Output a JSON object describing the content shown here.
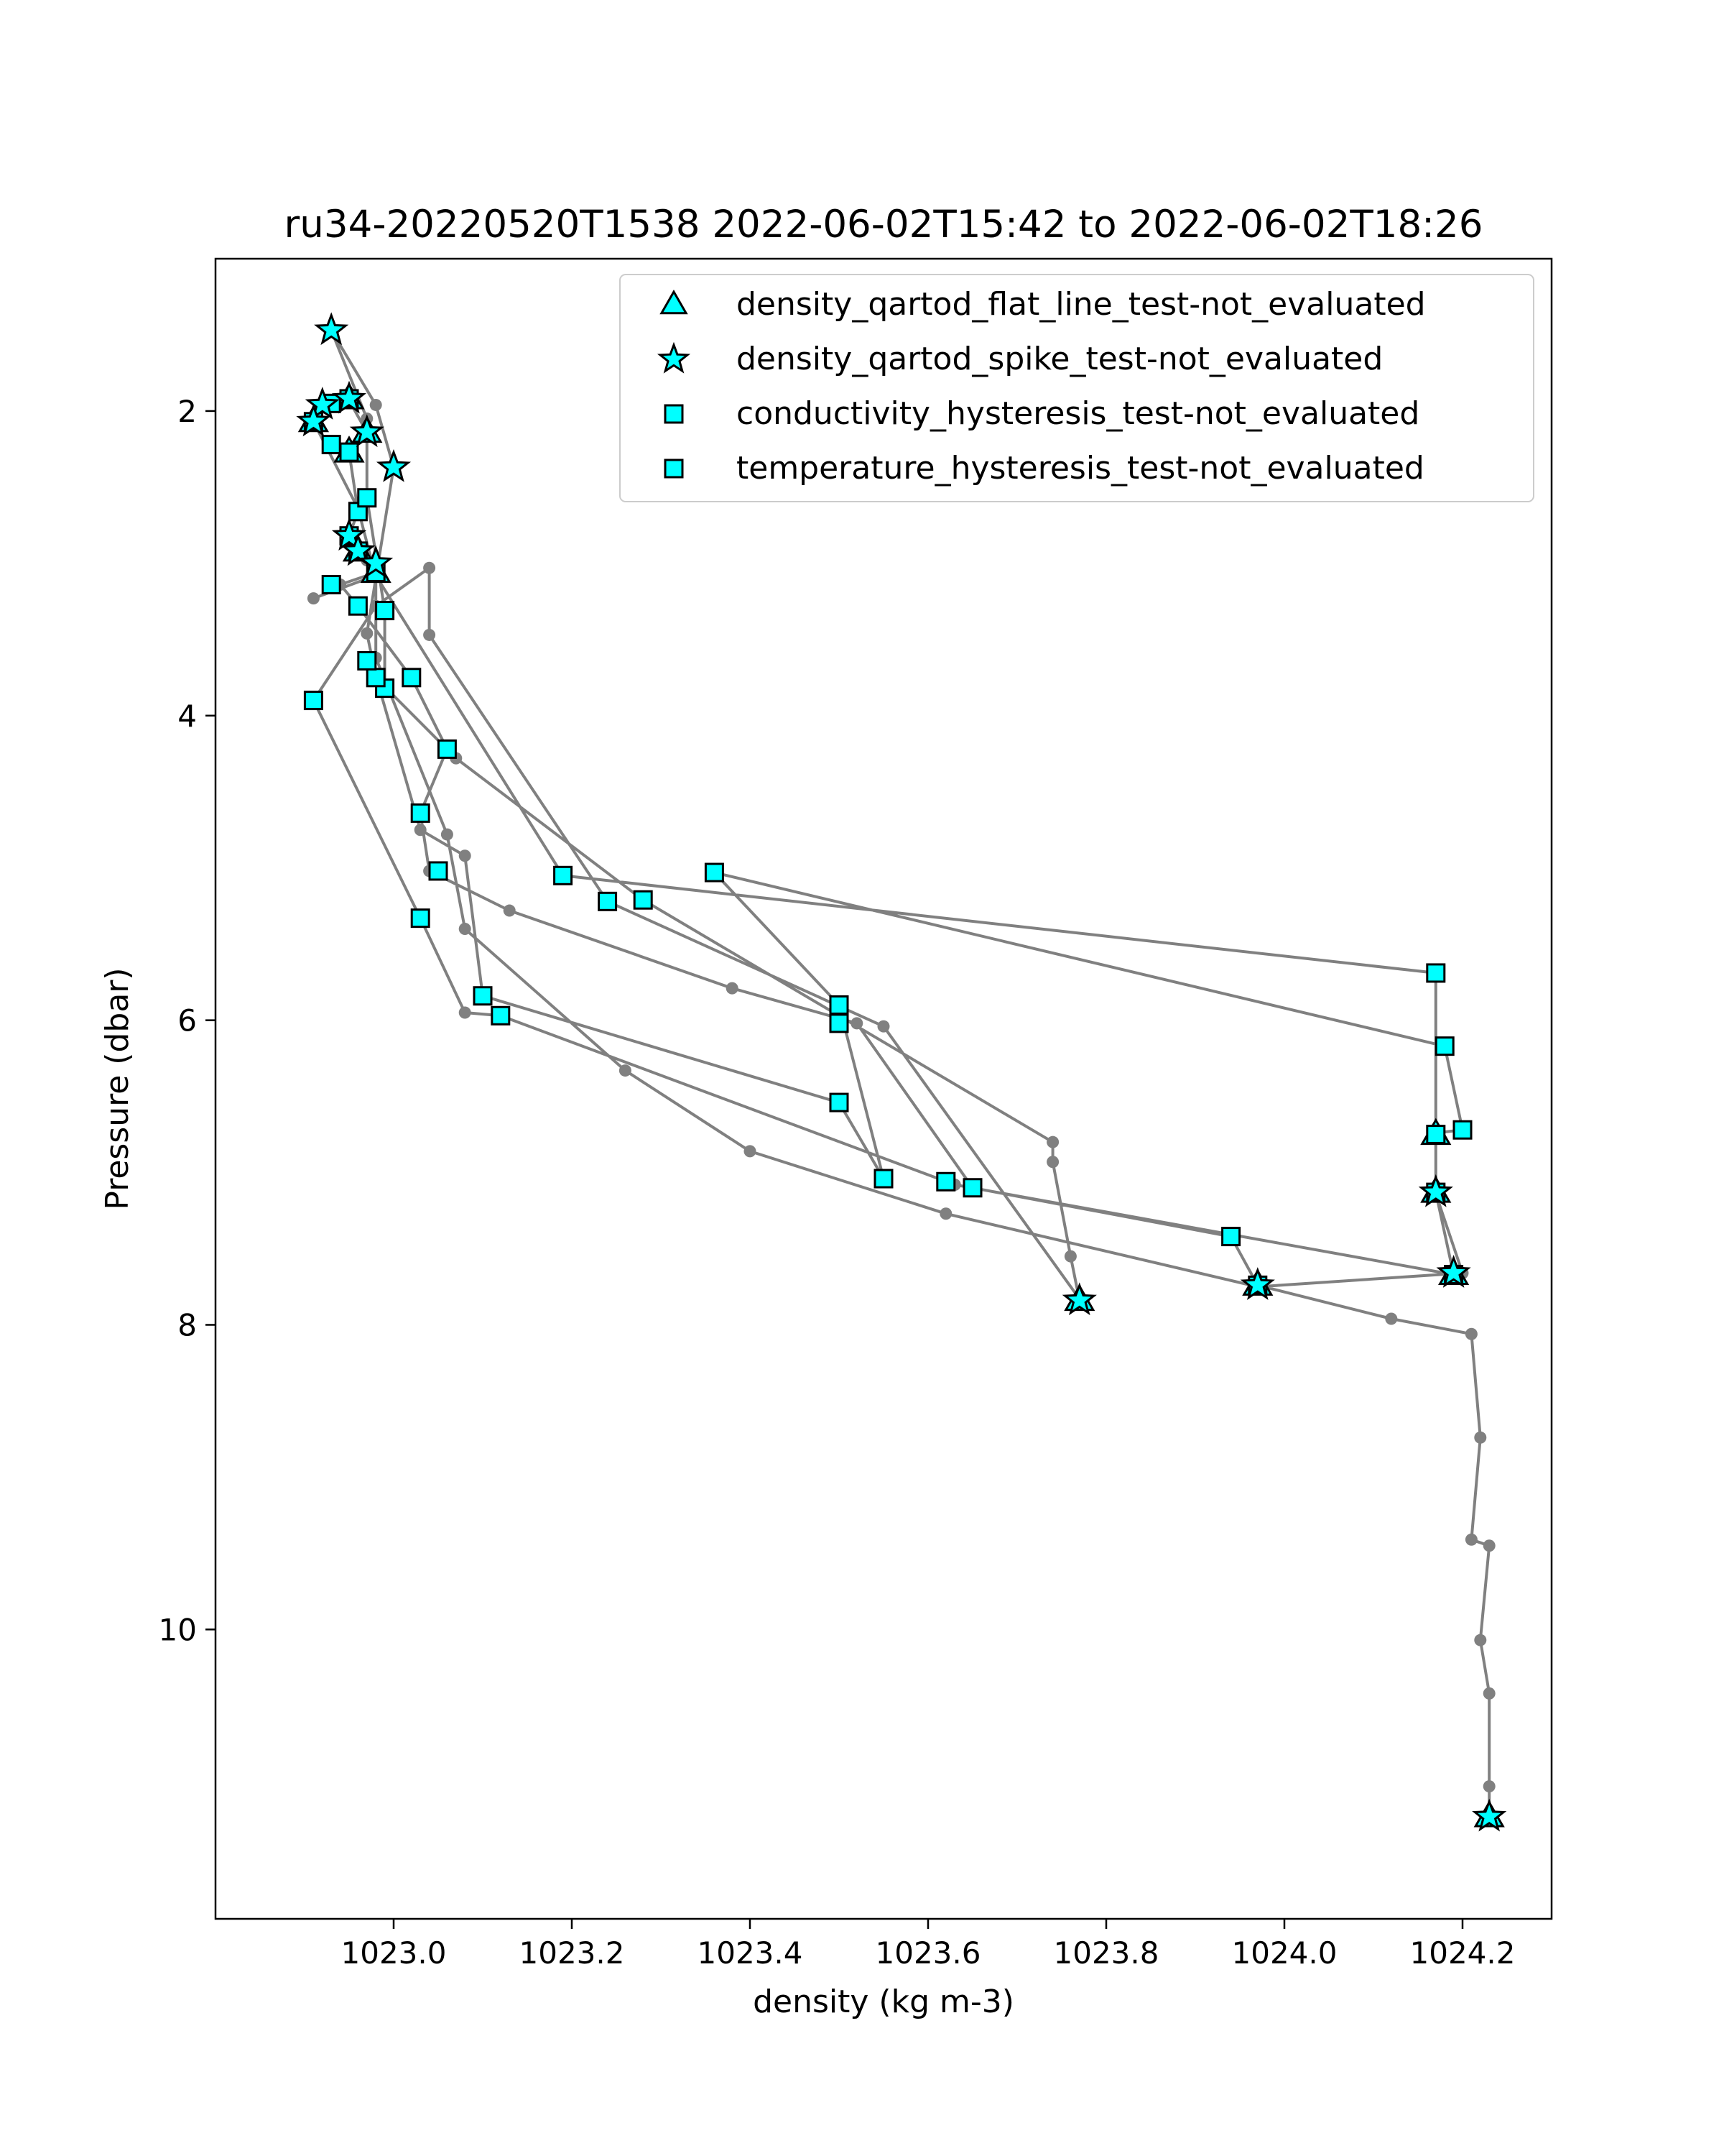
{
  "colors": {
    "line": "#808080",
    "marker_fill": "#00ffff",
    "marker_edge": "#000000",
    "frame": "#000000"
  },
  "chart_data": {
    "type": "scatter",
    "title": "ru34-20220520T1538 2022-06-02T15:42 to 2022-06-02T18:26",
    "xlabel": "density (kg m-3)",
    "ylabel": "Pressure (dbar)",
    "xlim": [
      1022.8,
      1024.3
    ],
    "ylim": [
      11.9,
      1.0
    ],
    "y_inverted": true,
    "grid": false,
    "legend_position": "upper-right",
    "xticks": [
      1023.0,
      1023.2,
      1023.4,
      1023.6,
      1023.8,
      1024.0,
      1024.2
    ],
    "xtick_labels": [
      "1023.0",
      "1023.2",
      "1023.4",
      "1023.6",
      "1023.8",
      "1024.0",
      "1024.2"
    ],
    "yticks": [
      2,
      4,
      6,
      8,
      10
    ],
    "ytick_labels": [
      "2",
      "4",
      "6",
      "8",
      "10"
    ],
    "legend": [
      {
        "label": "density_qartod_flat_line_test-not_evaluated",
        "marker": "triangle"
      },
      {
        "label": "density_qartod_spike_test-not_evaluated",
        "marker": "star"
      },
      {
        "label": "conductivity_hysteresis_test-not_evaluated",
        "marker": "square"
      },
      {
        "label": "temperature_hysteresis_test-not_evaluated",
        "marker": "square"
      }
    ],
    "profile": [
      [
        1024.23,
        11.23
      ],
      [
        1024.23,
        11.03
      ],
      [
        1024.23,
        10.42
      ],
      [
        1024.22,
        10.07
      ],
      [
        1024.23,
        9.45
      ],
      [
        1024.21,
        9.41
      ],
      [
        1024.22,
        8.74
      ],
      [
        1024.21,
        8.06
      ],
      [
        1024.12,
        7.96
      ],
      [
        1023.97,
        7.74
      ],
      [
        1023.94,
        7.42
      ],
      [
        1023.65,
        7.1
      ],
      [
        1023.52,
        6.02
      ],
      [
        1023.38,
        5.79
      ],
      [
        1023.13,
        5.28
      ],
      [
        1023.04,
        5.02
      ],
      [
        1023.03,
        4.64
      ],
      [
        1023.06,
        4.22
      ],
      [
        1023.06,
        4.22
      ],
      [
        1023.02,
        3.75
      ],
      [
        1022.96,
        3.28
      ],
      [
        1022.94,
        3.14
      ],
      [
        1022.98,
        3.06
      ],
      [
        1022.97,
        2.98
      ],
      [
        1022.96,
        2.92
      ],
      [
        1022.95,
        2.82
      ],
      [
        1022.96,
        2.66
      ],
      [
        1022.95,
        2.27
      ],
      [
        1022.95,
        2.26
      ],
      [
        1022.97,
        2.14
      ],
      [
        1022.95,
        1.93
      ],
      [
        1022.93,
        1.95
      ],
      [
        1022.91,
        2.07
      ],
      [
        1022.91,
        2.07
      ],
      [
        1022.96,
        2.64
      ],
      [
        1022.98,
        3.09
      ],
      [
        1022.98,
        3.62
      ],
      [
        1023.06,
        4.78
      ],
      [
        1023.08,
        5.4
      ],
      [
        1023.26,
        6.33
      ],
      [
        1023.4,
        6.86
      ],
      [
        1023.62,
        7.27
      ],
      [
        1023.97,
        7.75
      ],
      [
        1024.2,
        7.66
      ],
      [
        1024.17,
        7.14
      ],
      [
        1024.17,
        6.75
      ],
      [
        1024.17,
        6.74
      ],
      [
        1024.2,
        6.72
      ],
      [
        1024.18,
        6.17
      ],
      [
        1023.36,
        5.03
      ],
      [
        1023.5,
        5.9
      ],
      [
        1023.55,
        7.04
      ],
      [
        1023.5,
        6.54
      ],
      [
        1023.1,
        5.84
      ],
      [
        1023.08,
        4.92
      ],
      [
        1023.03,
        4.75
      ],
      [
        1022.98,
        3.74
      ],
      [
        1022.97,
        3.46
      ],
      [
        1023.0,
        2.37
      ],
      [
        1022.98,
        1.96
      ],
      [
        1022.93,
        1.47
      ],
      [
        1022.97,
        2.05
      ],
      [
        1022.97,
        2.57
      ],
      [
        1022.99,
        3.31
      ],
      [
        1022.99,
        3.81
      ],
      [
        1023.07,
        4.28
      ],
      [
        1023.28,
        5.21
      ],
      [
        1023.74,
        6.8
      ],
      [
        1023.74,
        6.93
      ],
      [
        1023.76,
        7.55
      ],
      [
        1023.77,
        7.84
      ],
      [
        1023.77,
        7.83
      ],
      [
        1023.55,
        6.04
      ],
      [
        1023.24,
        5.22
      ],
      [
        1023.04,
        3.47
      ],
      [
        1023.04,
        3.03
      ],
      [
        1022.98,
        3.28
      ],
      [
        1022.91,
        3.9
      ],
      [
        1023.03,
        5.33
      ],
      [
        1023.08,
        5.95
      ],
      [
        1023.12,
        5.97
      ],
      [
        1023.63,
        7.08
      ],
      [
        1024.19,
        7.67
      ],
      [
        1024.17,
        7.13
      ],
      [
        1024.17,
        5.69
      ],
      [
        1023.19,
        5.05
      ],
      [
        1022.98,
        3.08
      ],
      [
        1022.91,
        3.23
      ]
    ],
    "square_points": [
      [
        1024.17,
        5.69
      ],
      [
        1024.18,
        6.17
      ],
      [
        1024.17,
        6.75
      ],
      [
        1024.2,
        6.72
      ],
      [
        1024.17,
        7.13
      ],
      [
        1024.19,
        7.67
      ],
      [
        1023.97,
        7.74
      ],
      [
        1023.94,
        7.42
      ],
      [
        1023.65,
        7.1
      ],
      [
        1023.62,
        7.06
      ],
      [
        1023.55,
        7.04
      ],
      [
        1023.5,
        6.54
      ],
      [
        1023.5,
        6.02
      ],
      [
        1023.5,
        5.9
      ],
      [
        1023.36,
        5.03
      ],
      [
        1023.28,
        5.21
      ],
      [
        1023.24,
        5.22
      ],
      [
        1023.19,
        5.05
      ],
      [
        1023.12,
        5.97
      ],
      [
        1023.1,
        5.84
      ],
      [
        1023.05,
        5.02
      ],
      [
        1023.03,
        5.33
      ],
      [
        1023.03,
        4.64
      ],
      [
        1023.06,
        4.22
      ],
      [
        1023.02,
        3.75
      ],
      [
        1022.99,
        3.82
      ],
      [
        1022.98,
        3.75
      ],
      [
        1022.97,
        3.64
      ],
      [
        1022.91,
        3.9
      ],
      [
        1022.96,
        3.28
      ],
      [
        1022.99,
        3.31
      ],
      [
        1022.98,
        3.06
      ],
      [
        1022.93,
        3.14
      ],
      [
        1022.96,
        2.92
      ],
      [
        1022.95,
        2.82
      ],
      [
        1022.96,
        2.66
      ],
      [
        1022.97,
        2.57
      ],
      [
        1022.95,
        2.27
      ],
      [
        1022.93,
        2.22
      ],
      [
        1022.91,
        2.07
      ],
      [
        1022.93,
        1.95
      ],
      [
        1022.95,
        1.92
      ]
    ],
    "star_points": [
      [
        1022.93,
        1.47
      ],
      [
        1022.95,
        1.92
      ],
      [
        1022.92,
        1.96
      ],
      [
        1022.97,
        2.14
      ],
      [
        1023.0,
        2.37
      ],
      [
        1022.91,
        2.07
      ],
      [
        1022.95,
        2.82
      ],
      [
        1022.96,
        2.92
      ],
      [
        1022.98,
        3.0
      ],
      [
        1023.77,
        7.84
      ],
      [
        1024.23,
        11.23
      ],
      [
        1024.19,
        7.66
      ],
      [
        1024.17,
        7.13
      ],
      [
        1023.97,
        7.74
      ]
    ],
    "triangle_points": [
      [
        1022.95,
        1.92
      ],
      [
        1022.91,
        2.07
      ],
      [
        1022.97,
        2.14
      ],
      [
        1022.95,
        2.27
      ],
      [
        1022.96,
        2.92
      ],
      [
        1022.98,
        3.06
      ],
      [
        1024.17,
        6.75
      ],
      [
        1024.17,
        7.13
      ],
      [
        1024.19,
        7.67
      ],
      [
        1023.97,
        7.74
      ],
      [
        1023.77,
        7.84
      ],
      [
        1024.23,
        11.23
      ]
    ]
  }
}
